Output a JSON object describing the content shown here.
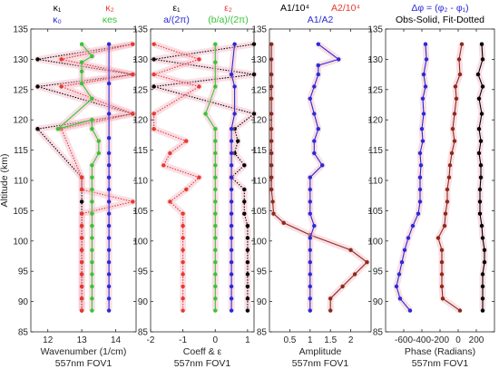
{
  "chart_data": [
    {
      "type": "line",
      "title_parts": [
        {
          "text": "κ₁",
          "color": "#000000",
          "row": 1
        },
        {
          "text": "κ₂",
          "color": "#e8382f",
          "row": 1
        },
        {
          "text": "κ₀",
          "color": "#2a2ad6",
          "row": 2
        },
        {
          "text": "κes",
          "color": "#38c436",
          "row": 2
        }
      ],
      "xlabel": "Wavenumber (1/cm)",
      "caption": "557nm  FOV1",
      "ylabel": "Altitude (km)",
      "xlim": [
        11.5,
        14.6
      ],
      "ylim": [
        85,
        135
      ],
      "xticks": [
        "12",
        "13",
        "14"
      ],
      "yticks": [
        "85",
        "90",
        "95",
        "100",
        "105",
        "110",
        "115",
        "120",
        "125",
        "130",
        "135"
      ],
      "series": [
        {
          "color": "#000000",
          "style": "dotted",
          "x": [
            13.0,
            13.0,
            13.0,
            13.0,
            13.0,
            13.0,
            13.0,
            13.0,
            13.0,
            13.0,
            13.0,
            13.0,
            11.7,
            14.5,
            11.7,
            14.5,
            11.7,
            14.5
          ],
          "y": [
            88.5,
            90.5,
            92.5,
            94.5,
            96.5,
            98.5,
            100.5,
            102.5,
            104.5,
            106.5,
            108.5,
            110.5,
            118.5,
            121,
            125.5,
            127.5,
            130,
            132.5
          ]
        },
        {
          "color": "#e8382f",
          "style": "dotted",
          "x": [
            13.0,
            13.0,
            13.0,
            13.0,
            13.0,
            13.0,
            13.0,
            13.0,
            13.0,
            14.5,
            13.0,
            13.0,
            12.4,
            14.5,
            12.4,
            14.5,
            12.4,
            14.5
          ],
          "y": [
            88.5,
            90.5,
            92.5,
            94.5,
            96.5,
            98.5,
            100.5,
            102.5,
            104.5,
            106.5,
            108.5,
            110.5,
            118.5,
            121,
            125.5,
            127.5,
            130,
            132.5
          ]
        },
        {
          "color": "#2a2ad6",
          "style": "solid",
          "x": [
            13.8,
            13.8,
            13.8,
            13.8,
            13.8,
            13.8,
            13.8,
            13.8,
            13.8,
            13.8,
            13.8,
            13.8,
            13.8,
            13.8,
            13.8,
            13.8,
            13.8,
            13.8
          ],
          "y": [
            88.5,
            90.5,
            92.5,
            94.5,
            96.5,
            98.5,
            100.5,
            102.5,
            104.5,
            106.5,
            108.5,
            110.5,
            112.5,
            114.5,
            117,
            121,
            126,
            132.5
          ]
        },
        {
          "color": "#38c436",
          "style": "solid",
          "x": [
            13.3,
            13.3,
            13.3,
            13.3,
            13.3,
            13.3,
            13.3,
            13.3,
            13.3,
            13.3,
            13.3,
            13.3,
            13.3,
            13.5,
            13.5,
            13.3,
            13.3,
            12.3,
            13.3,
            13.0,
            13.0,
            13.0,
            13.3,
            13.0
          ],
          "y": [
            88.5,
            90.5,
            92.5,
            94.5,
            96.5,
            98.5,
            100.5,
            102.5,
            104.5,
            106.5,
            108.5,
            110.5,
            112.5,
            114.5,
            116.5,
            118.5,
            120,
            118.5,
            123.5,
            126,
            128,
            129.5,
            130.5,
            132.5
          ]
        }
      ]
    },
    {
      "type": "line",
      "title_parts": [
        {
          "text": "ε₁",
          "color": "#000000",
          "row": 1
        },
        {
          "text": "ε₂",
          "color": "#e8382f",
          "row": 1
        },
        {
          "text": "a/(2π)",
          "color": "#2a2ad6",
          "row": 2
        },
        {
          "text": "(b/a)/(2π)",
          "color": "#38c436",
          "row": 2
        }
      ],
      "xlabel": "Coeff & ε",
      "caption": "557nm  FOV1",
      "xlim": [
        -2,
        1.2
      ],
      "ylim": [
        85,
        135
      ],
      "xticks": [
        "-2",
        "-1",
        "0",
        "1"
      ],
      "series": [
        {
          "color": "#000000",
          "style": "dotted",
          "x": [
            1.0,
            1.0,
            1.0,
            1.0,
            1.0,
            1.0,
            1.0,
            1.0,
            0.9,
            0.9,
            0.9,
            0.5,
            0.9,
            0.6,
            0.7,
            0.6,
            1.2,
            -1.9,
            1.2,
            -1.9,
            1.2
          ],
          "y": [
            88.5,
            90.5,
            92.5,
            94.5,
            96.5,
            98.5,
            100.5,
            102.5,
            104.5,
            106.5,
            108.5,
            110.5,
            112.5,
            114.5,
            116.5,
            118.5,
            121,
            125.5,
            127.5,
            130,
            132.5
          ]
        },
        {
          "color": "#e8382f",
          "style": "dotted",
          "x": [
            -1.0,
            -1.0,
            -1.0,
            -1.0,
            -1.0,
            -1.0,
            -1.0,
            -1.0,
            -1.0,
            -1.4,
            -0.9,
            -0.5,
            -1.6,
            -1.4,
            -0.9,
            -1.9,
            -1.9,
            -0.5,
            -1.9,
            -0.5,
            -1.9
          ],
          "y": [
            88.5,
            90.5,
            92.5,
            94.5,
            96.5,
            98.5,
            100.5,
            102.5,
            104.5,
            106.5,
            108.5,
            110.5,
            112.5,
            114.5,
            116.5,
            118.5,
            121,
            125.5,
            127.5,
            130,
            132.5
          ]
        },
        {
          "color": "#2a2ad6",
          "style": "solid",
          "x": [
            0.5,
            0.5,
            0.5,
            0.5,
            0.5,
            0.5,
            0.5,
            0.5,
            0.5,
            0.5,
            0.5,
            0.5,
            0.5,
            0.5,
            0.5,
            0.5,
            0.6,
            0.6,
            0.5,
            0.6
          ],
          "y": [
            88.5,
            90.5,
            92.5,
            94.5,
            96.5,
            98.5,
            100.5,
            102.5,
            104.5,
            106.5,
            108.5,
            110.5,
            112.5,
            114.5,
            116.5,
            118.5,
            121,
            125.5,
            127.5,
            132.5
          ]
        },
        {
          "color": "#38c436",
          "style": "solid",
          "x": [
            0.0,
            0.0,
            0.0,
            0.0,
            0.0,
            0.0,
            0.0,
            0.0,
            0.0,
            0.0,
            0.0,
            0.0,
            0.0,
            0.0,
            0.0,
            0.0,
            -0.3,
            0.0,
            0.0,
            0.0
          ],
          "y": [
            88.5,
            90.5,
            92.5,
            94.5,
            96.5,
            98.5,
            100.5,
            102.5,
            104.5,
            106.5,
            108.5,
            110.5,
            112.5,
            114.5,
            116.5,
            118.5,
            121,
            125.5,
            129.5,
            132.5
          ]
        }
      ]
    },
    {
      "type": "line",
      "title_parts": [
        {
          "text": "A1/10⁴",
          "color": "#000000",
          "row": 1
        },
        {
          "text": "A2/10⁴",
          "color": "#e8382f",
          "row": 1
        },
        {
          "text": "A1/A2",
          "color": "#2a2ad6",
          "row": 2
        }
      ],
      "xlabel": "Amplitude",
      "caption": "557nm  FOV1",
      "xlim": [
        0,
        2.5
      ],
      "ylim": [
        85,
        135
      ],
      "xticks": [
        "0.5",
        "1",
        "1.5",
        "2"
      ],
      "series": [
        {
          "color": "#8b2a1a",
          "style": "solid",
          "x": [
            1.5,
            1.5,
            1.8,
            2.1,
            2.4,
            2.0,
            1.0,
            0.35,
            0.1,
            0.08,
            0.05,
            0.05,
            0.05,
            0.05,
            0.05,
            0.05,
            0.05,
            0.05,
            0.05,
            0.05,
            0.05,
            0.05
          ],
          "y": [
            88.5,
            90.5,
            92.5,
            94.5,
            96.5,
            98.5,
            101,
            103,
            104.5,
            106.5,
            108.5,
            110.5,
            112.5,
            114.5,
            116.5,
            118.5,
            121,
            123.5,
            125.5,
            127.5,
            130,
            132.5
          ]
        },
        {
          "color": "#2a2ad6",
          "style": "solid",
          "x": [
            1.0,
            1.0,
            1.0,
            1.0,
            1.0,
            1.0,
            1.0,
            1.1,
            1.0,
            1.0,
            1.0,
            1.0,
            1.3,
            1.1,
            1.1,
            1.2,
            1.1,
            1.0,
            1.1,
            1.2,
            1.2,
            1.7,
            1.2
          ],
          "y": [
            88.5,
            90.5,
            92.5,
            94.5,
            96.5,
            98.5,
            100.5,
            102.5,
            104.5,
            106.5,
            108.5,
            110.5,
            112.5,
            114.5,
            116.5,
            118.5,
            121,
            123.5,
            125.5,
            127.5,
            129,
            130,
            132.5
          ]
        }
      ]
    },
    {
      "type": "line",
      "title_parts": [
        {
          "text": "Δφ = (φ₂ - φ₁)",
          "color": "#2a2ad6",
          "row": 1
        },
        {
          "text": "Obs-Solid, Fit-Dotted",
          "color": "#000000",
          "row": 2
        }
      ],
      "xlabel": "Phase (Radians)",
      "caption": "557nm  FOV1",
      "xlim": [
        -800,
        400
      ],
      "ylim": [
        85,
        135
      ],
      "xticks": [
        "-600",
        "-400",
        "-200",
        "0",
        "200"
      ],
      "series": [
        {
          "color": "#2a2ad6",
          "style": "solid",
          "x": [
            -530,
            -640,
            -680,
            -650,
            -620,
            -590,
            -550,
            -500,
            -440,
            -420,
            -420,
            -420,
            -410,
            -420,
            -390,
            -400,
            -380,
            -390,
            -360,
            -380,
            -350,
            -360
          ],
          "y": [
            88.5,
            90.5,
            92.5,
            94.5,
            96.5,
            98.5,
            100.5,
            102.5,
            104.5,
            106.5,
            108.5,
            110.5,
            112.5,
            114.5,
            116.5,
            118.5,
            121,
            123.5,
            125.5,
            127.5,
            130,
            132.5
          ]
        },
        {
          "color": "#8b2a1a",
          "style": "solid",
          "x": [
            20,
            -170,
            -180,
            -180,
            -180,
            -180,
            -220,
            -150,
            -140,
            -120,
            -120,
            -100,
            -90,
            -70,
            -40,
            -60,
            -40,
            -20,
            -30,
            20,
            10,
            40
          ],
          "y": [
            88.5,
            90.5,
            92.5,
            94.5,
            96.5,
            98.5,
            100.5,
            102.5,
            104.5,
            106.5,
            108.5,
            110.5,
            112.5,
            114.5,
            116.5,
            118.5,
            121,
            123.5,
            125.5,
            127.5,
            130,
            132.5
          ]
        },
        {
          "color": "#000000",
          "style": "solid",
          "x": [
            270,
            270,
            270,
            270,
            290,
            290,
            270,
            260,
            240,
            240,
            240,
            250,
            250,
            230,
            250,
            230,
            260,
            230,
            270,
            220,
            270,
            260
          ],
          "y": [
            88.5,
            90.5,
            92.5,
            94.5,
            96.5,
            98.5,
            100.5,
            102.5,
            104.5,
            106.5,
            108.5,
            110.5,
            112.5,
            114.5,
            116.5,
            118.5,
            121,
            123.5,
            125.5,
            127.5,
            130,
            132.5
          ]
        }
      ]
    }
  ]
}
